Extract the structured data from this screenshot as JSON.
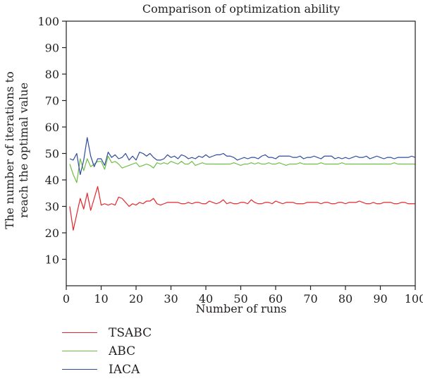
{
  "chart_data": {
    "type": "line",
    "title": "Comparison of optimization ability",
    "xlabel": "Number of runs",
    "ylabel": [
      "The number of iterations to",
      "reach the optimal value"
    ],
    "xlim": [
      0,
      100
    ],
    "ylim": [
      0,
      100
    ],
    "xticks": [
      0,
      10,
      20,
      30,
      40,
      50,
      60,
      70,
      80,
      90,
      100
    ],
    "yticks": [
      10,
      20,
      30,
      40,
      50,
      60,
      70,
      80,
      90,
      100
    ],
    "grid": false,
    "legend_position": "bottom-left",
    "x": [
      1,
      2,
      3,
      4,
      5,
      6,
      7,
      8,
      9,
      10,
      11,
      12,
      13,
      14,
      15,
      16,
      17,
      18,
      19,
      20,
      21,
      22,
      23,
      24,
      25,
      26,
      27,
      28,
      29,
      30,
      31,
      32,
      33,
      34,
      35,
      36,
      37,
      38,
      39,
      40,
      41,
      42,
      43,
      44,
      45,
      46,
      47,
      48,
      49,
      50,
      51,
      52,
      53,
      54,
      55,
      56,
      57,
      58,
      59,
      60,
      61,
      62,
      63,
      64,
      65,
      66,
      67,
      68,
      69,
      70,
      71,
      72,
      73,
      74,
      75,
      76,
      77,
      78,
      79,
      80,
      81,
      82,
      83,
      84,
      85,
      86,
      87,
      88,
      89,
      90,
      91,
      92,
      93,
      94,
      95,
      96,
      97,
      98,
      99,
      100
    ],
    "series": [
      {
        "name": "TSABC",
        "color": "#e3262b",
        "values": [
          30,
          21,
          27,
          33,
          29,
          35,
          28.5,
          33,
          37.5,
          30.5,
          31,
          30.5,
          31,
          30.5,
          33.5,
          33,
          31.5,
          30,
          31,
          30.5,
          31.5,
          31,
          32,
          32,
          33,
          31,
          30.5,
          31,
          31.5,
          31.5,
          31.5,
          31.5,
          31,
          31,
          31.5,
          31,
          31.5,
          31.5,
          31,
          31,
          32,
          31.5,
          31,
          31.5,
          32.5,
          31,
          31.5,
          31,
          31,
          31.5,
          31.5,
          31,
          32.5,
          31.5,
          31,
          31,
          31.5,
          31.5,
          31,
          32,
          31.5,
          31,
          31.5,
          31.5,
          31.5,
          31,
          31,
          31,
          31.5,
          31.5,
          31.5,
          31.5,
          31,
          31.5,
          31.5,
          31,
          31,
          31.5,
          31.5,
          31,
          31.5,
          31.5,
          31.5,
          32,
          31.5,
          31,
          31,
          31.5,
          31,
          31,
          31.5,
          31.5,
          31.5,
          31,
          31,
          31.5,
          31.5,
          31,
          31,
          31
        ]
      },
      {
        "name": "ABC",
        "color": "#6dbe45",
        "values": [
          46,
          42,
          39,
          48,
          43.5,
          48,
          45,
          46,
          47,
          47,
          44,
          49,
          46.5,
          47,
          46,
          44.5,
          45,
          45.5,
          46,
          46.5,
          45,
          45.5,
          46,
          45.5,
          44.5,
          46.5,
          46,
          46.5,
          46,
          47,
          46.5,
          46,
          47,
          46,
          46,
          47,
          45.5,
          46,
          46.5,
          46,
          46,
          46,
          46,
          46,
          46,
          46,
          46,
          46.5,
          46,
          45.5,
          46,
          46,
          46.5,
          46,
          46.5,
          46,
          46,
          46.5,
          46,
          46,
          46.5,
          46,
          45.5,
          46,
          46,
          46,
          46.5,
          46,
          46,
          46,
          46,
          46,
          46.5,
          46,
          46,
          46,
          46,
          46,
          46.5,
          46,
          46,
          46,
          46,
          46,
          46,
          46,
          46,
          46,
          46,
          46,
          46,
          46,
          46,
          46.5,
          46,
          46,
          46,
          46,
          46,
          46
        ]
      },
      {
        "name": "IACA",
        "color": "#2f4b9f",
        "values": [
          48,
          47.5,
          50,
          42,
          47.5,
          56,
          49,
          45,
          48,
          48,
          45.5,
          50.5,
          48.5,
          49.5,
          48,
          48.5,
          50,
          47.5,
          49,
          47.5,
          50.5,
          50,
          49,
          50,
          48.5,
          47.5,
          47.5,
          48,
          49.5,
          48.5,
          49,
          48,
          49.5,
          49,
          48,
          48.5,
          48,
          49,
          48.5,
          49.5,
          48.5,
          49,
          49.5,
          49.5,
          50,
          49,
          49,
          48.5,
          47.5,
          48,
          48.5,
          48,
          48.5,
          48.5,
          48,
          49,
          49.5,
          48.5,
          48.5,
          48,
          49,
          49,
          49,
          49,
          48.5,
          48.5,
          49,
          48,
          48.5,
          48.5,
          49,
          48.5,
          48,
          49,
          49,
          49,
          48,
          48.5,
          48,
          48.5,
          48,
          48.5,
          49,
          48.5,
          48.5,
          49,
          48,
          48.5,
          49,
          48.5,
          48,
          48.5,
          48.5,
          48,
          48.5,
          48.5,
          48.5,
          48.5,
          49,
          48.5
        ]
      }
    ]
  }
}
